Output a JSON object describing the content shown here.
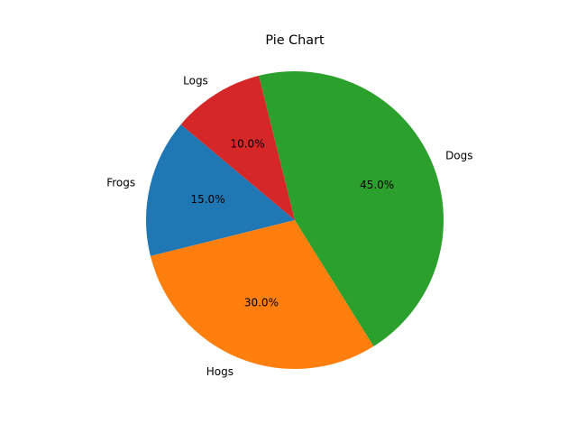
{
  "chart_data": {
    "type": "pie",
    "title": "Pie Chart",
    "labels": [
      "Frogs",
      "Hogs",
      "Dogs",
      "Logs"
    ],
    "values": [
      15,
      30,
      45,
      10
    ],
    "percent_labels": [
      "15.0%",
      "30.0%",
      "45.0%",
      "10.0%"
    ],
    "colors": [
      "#1f77b4",
      "#ff7f0e",
      "#2ca02c",
      "#d62728"
    ],
    "start_angle": 140,
    "direction": "counterclockwise",
    "legend": "none"
  }
}
